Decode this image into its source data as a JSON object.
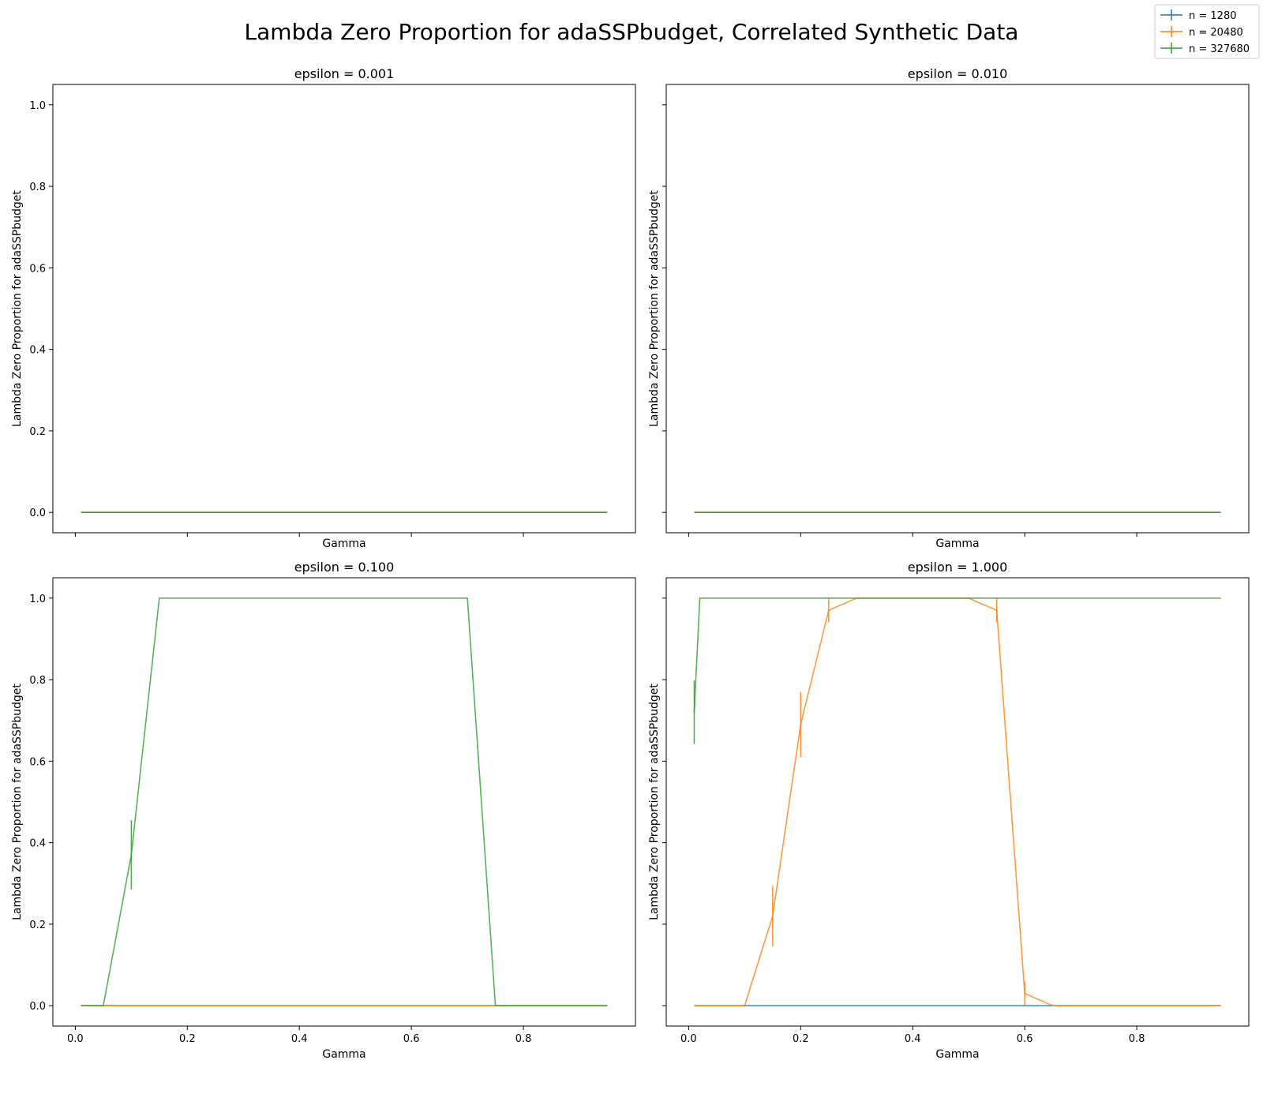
{
  "figure": {
    "suptitle": "Lambda Zero Proportion for adaSSPbudget, Correlated Synthetic Data"
  },
  "legend": {
    "placement": "upper-right",
    "entries": [
      {
        "label": "n = 1280",
        "color": "#1f77b4"
      },
      {
        "label": "n = 20480",
        "color": "#ff7f0e"
      },
      {
        "label": "n = 327680",
        "color": "#2ca02c"
      }
    ]
  },
  "chart_data": [
    {
      "type": "line",
      "title": "epsilon = 0.001",
      "xlabel": "Gamma",
      "ylabel": "Lambda Zero Proportion for adaSSPbudget",
      "xlim": [
        -0.04,
        1.0
      ],
      "ylim": [
        -0.05,
        1.05
      ],
      "x_ticks": [
        0.0,
        0.2,
        0.4,
        0.6,
        0.8
      ],
      "x_tick_labels": [],
      "y_ticks": [
        0.0,
        0.2,
        0.4,
        0.6,
        0.8,
        1.0
      ],
      "y_tick_labels": [
        "0.0",
        "0.2",
        "0.4",
        "0.6",
        "0.8",
        "1.0"
      ],
      "series": [
        {
          "name": "n = 1280",
          "color": "#1f77b4",
          "x": [
            0.01,
            0.95
          ],
          "y": [
            0,
            0
          ],
          "err": [
            0,
            0
          ]
        },
        {
          "name": "n = 20480",
          "color": "#ff7f0e",
          "x": [
            0.01,
            0.95
          ],
          "y": [
            0,
            0
          ],
          "err": [
            0,
            0
          ]
        },
        {
          "name": "n = 327680",
          "color": "#2ca02c",
          "x": [
            0.01,
            0.95
          ],
          "y": [
            0,
            0
          ],
          "err": [
            0,
            0
          ]
        }
      ]
    },
    {
      "type": "line",
      "title": "epsilon = 0.010",
      "xlabel": "Gamma",
      "ylabel": "Lambda Zero Proportion for adaSSPbudget",
      "xlim": [
        -0.04,
        1.0
      ],
      "ylim": [
        -0.05,
        1.05
      ],
      "x_ticks": [
        0.0,
        0.2,
        0.4,
        0.6,
        0.8
      ],
      "x_tick_labels": [],
      "y_ticks": [
        0.0,
        0.2,
        0.4,
        0.6,
        0.8,
        1.0
      ],
      "y_tick_labels": [],
      "series": [
        {
          "name": "n = 1280",
          "color": "#1f77b4",
          "x": [
            0.01,
            0.95
          ],
          "y": [
            0,
            0
          ],
          "err": [
            0,
            0
          ]
        },
        {
          "name": "n = 20480",
          "color": "#ff7f0e",
          "x": [
            0.01,
            0.95
          ],
          "y": [
            0,
            0
          ],
          "err": [
            0,
            0
          ]
        },
        {
          "name": "n = 327680",
          "color": "#2ca02c",
          "x": [
            0.01,
            0.95
          ],
          "y": [
            0,
            0
          ],
          "err": [
            0,
            0
          ]
        }
      ]
    },
    {
      "type": "line",
      "title": "epsilon = 0.100",
      "xlabel": "Gamma",
      "ylabel": "Lambda Zero Proportion for adaSSPbudget",
      "xlim": [
        -0.04,
        1.0
      ],
      "ylim": [
        -0.05,
        1.05
      ],
      "x_ticks": [
        0.0,
        0.2,
        0.4,
        0.6,
        0.8
      ],
      "x_tick_labels": [
        "0.0",
        "0.2",
        "0.4",
        "0.6",
        "0.8"
      ],
      "y_ticks": [
        0.0,
        0.2,
        0.4,
        0.6,
        0.8,
        1.0
      ],
      "y_tick_labels": [
        "0.0",
        "0.2",
        "0.4",
        "0.6",
        "0.8",
        "1.0"
      ],
      "series": [
        {
          "name": "n = 1280",
          "color": "#1f77b4",
          "x": [
            0.01,
            0.95
          ],
          "y": [
            0,
            0
          ],
          "err": [
            0,
            0
          ]
        },
        {
          "name": "n = 20480",
          "color": "#ff7f0e",
          "x": [
            0.01,
            0.95
          ],
          "y": [
            0,
            0
          ],
          "err": [
            0,
            0
          ]
        },
        {
          "name": "n = 327680",
          "color": "#2ca02c",
          "x": [
            0.01,
            0.05,
            0.1,
            0.15,
            0.7,
            0.75,
            0.95
          ],
          "y": [
            0,
            0,
            0.37,
            1.0,
            1.0,
            0,
            0
          ],
          "err": [
            0,
            0,
            0.085,
            0,
            0,
            0,
            0
          ]
        }
      ]
    },
    {
      "type": "line",
      "title": "epsilon = 1.000",
      "xlabel": "Gamma",
      "ylabel": "Lambda Zero Proportion for adaSSPbudget",
      "xlim": [
        -0.04,
        1.0
      ],
      "ylim": [
        -0.05,
        1.05
      ],
      "x_ticks": [
        0.0,
        0.2,
        0.4,
        0.6,
        0.8
      ],
      "x_tick_labels": [
        "0.0",
        "0.2",
        "0.4",
        "0.6",
        "0.8"
      ],
      "y_ticks": [
        0.0,
        0.2,
        0.4,
        0.6,
        0.8,
        1.0
      ],
      "y_tick_labels": [],
      "series": [
        {
          "name": "n = 1280",
          "color": "#1f77b4",
          "x": [
            0.01,
            0.95
          ],
          "y": [
            0,
            0
          ],
          "err": [
            0,
            0
          ]
        },
        {
          "name": "n = 20480",
          "color": "#ff7f0e",
          "x": [
            0.01,
            0.1,
            0.15,
            0.2,
            0.25,
            0.3,
            0.5,
            0.55,
            0.6,
            0.65,
            0.95
          ],
          "y": [
            0,
            0,
            0.22,
            0.69,
            0.97,
            1.0,
            1.0,
            0.97,
            0.03,
            0,
            0
          ],
          "err": [
            0,
            0,
            0.074,
            0.08,
            0.03,
            0,
            0,
            0.03,
            0.03,
            0,
            0
          ]
        },
        {
          "name": "n = 327680",
          "color": "#2ca02c",
          "x": [
            0.01,
            0.02,
            0.95
          ],
          "y": [
            0.72,
            1.0,
            1.0
          ],
          "err": [
            0.078,
            0,
            0
          ]
        }
      ]
    }
  ]
}
